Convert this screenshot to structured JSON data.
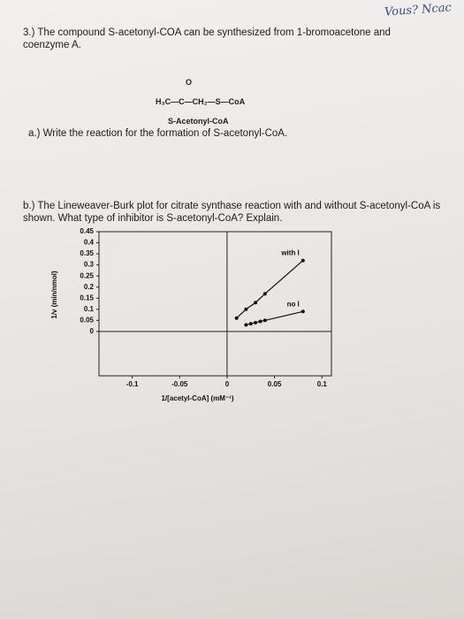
{
  "handwriting": "Vous? Ncac",
  "question3": {
    "text": "3.) The compound S-acetonyl-COA can be synthesized from 1-bromoacetone and coenzyme A.",
    "structure": {
      "oxygen": "O",
      "formula": "H₃C—C—CH₂—S—CoA",
      "name": "S-Acetonyl-CoA"
    },
    "part_a": "a.) Write the reaction for the formation of S-acetonyl-CoA.",
    "part_b": "b.) The Lineweaver-Burk plot for citrate synthase reaction with and without S-acetonyl-CoA is shown. What type of inhibitor is S-acetonyl-CoA? Explain."
  },
  "chart_data": {
    "type": "line",
    "x_label": "1/[acetyl-CoA] (mM⁻¹)",
    "y_label": "1/v (min/nmol)",
    "xlim": [
      -0.135,
      0.11
    ],
    "ylim": [
      -0.2,
      0.45
    ],
    "xticks": [
      -0.1,
      -0.05,
      0,
      0.05,
      0.1
    ],
    "yticks": [
      0,
      0.05,
      0.1,
      0.15,
      0.2,
      0.25,
      0.3,
      0.35,
      0.4,
      0.45
    ],
    "series": [
      {
        "name": "with I",
        "color": "#111111",
        "x": [
          0.01,
          0.02,
          0.03,
          0.04,
          0.08
        ],
        "values": [
          0.06,
          0.1,
          0.13,
          0.17,
          0.32
        ]
      },
      {
        "name": "no I",
        "color": "#111111",
        "x": [
          0.02,
          0.025,
          0.03,
          0.035,
          0.04,
          0.08
        ],
        "values": [
          0.03,
          0.035,
          0.04,
          0.045,
          0.05,
          0.09
        ]
      }
    ]
  }
}
